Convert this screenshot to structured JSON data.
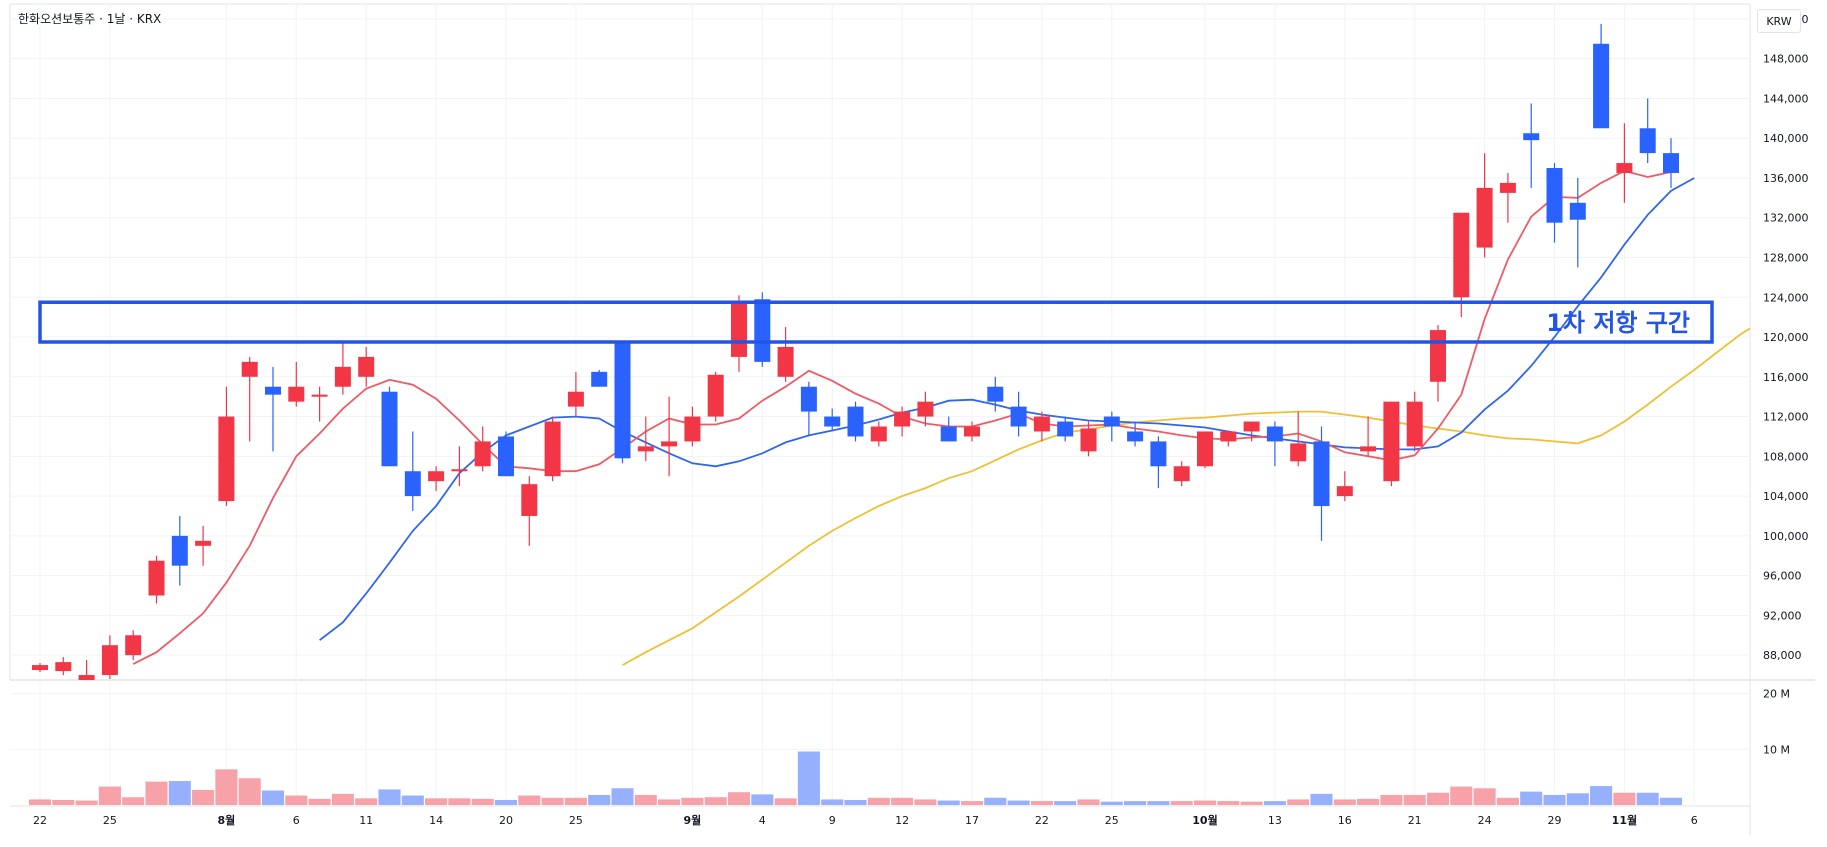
{
  "symbol_title": "한화오션보통주 · 1날 · KRX",
  "currency": "KRW",
  "annotation": {
    "label": "1차 저항 구간",
    "from": 119500,
    "to": 123500
  },
  "colors": {
    "up": "#f23645",
    "down": "#2962ff",
    "up_vol": "#f7a1a9",
    "down_vol": "#97b0fd",
    "ma5": "#ef5b64",
    "ma10": "#2f66f0",
    "ma20": "#f0c034",
    "box": "#2255e6"
  },
  "chart_data": {
    "type": "candlestick",
    "price_axis": {
      "min": 85500,
      "max": 153500,
      "ticks": [
        88000,
        92000,
        96000,
        100000,
        104000,
        108000,
        112000,
        116000,
        120000,
        124000,
        128000,
        132000,
        136000,
        140000,
        144000,
        148000,
        152000
      ],
      "tick_labels": [
        "88,000",
        "92,000",
        "96,000",
        "100,000",
        "104,000",
        "108,000",
        "112,000",
        "116,000",
        "120,000",
        "124,000",
        "128,000",
        "132,000",
        "136,000",
        "140,000",
        "144,000",
        "148,000",
        "152,000"
      ]
    },
    "volume_axis": {
      "max": 21000000,
      "tick_labels": [
        {
          "label": "20 M",
          "value": 20000000
        },
        {
          "label": "10 M",
          "value": 10000000
        }
      ]
    },
    "x_labels": [
      {
        "label": "22",
        "index": 0,
        "bold": false
      },
      {
        "label": "25",
        "index": 3,
        "bold": false
      },
      {
        "label": "8월",
        "index": 8,
        "bold": true
      },
      {
        "label": "6",
        "index": 11,
        "bold": false
      },
      {
        "label": "11",
        "index": 14,
        "bold": false
      },
      {
        "label": "14",
        "index": 17,
        "bold": false
      },
      {
        "label": "20",
        "index": 20,
        "bold": false
      },
      {
        "label": "25",
        "index": 23,
        "bold": false
      },
      {
        "label": "9월",
        "index": 28,
        "bold": true
      },
      {
        "label": "4",
        "index": 31,
        "bold": false
      },
      {
        "label": "9",
        "index": 34,
        "bold": false
      },
      {
        "label": "12",
        "index": 37,
        "bold": false
      },
      {
        "label": "17",
        "index": 40,
        "bold": false
      },
      {
        "label": "22",
        "index": 43,
        "bold": false
      },
      {
        "label": "25",
        "index": 46,
        "bold": false
      },
      {
        "label": "10월",
        "index": 50,
        "bold": true
      },
      {
        "label": "13",
        "index": 53,
        "bold": false
      },
      {
        "label": "16",
        "index": 56,
        "bold": false
      },
      {
        "label": "21",
        "index": 59,
        "bold": false
      },
      {
        "label": "24",
        "index": 62,
        "bold": false
      },
      {
        "label": "29",
        "index": 65,
        "bold": false
      },
      {
        "label": "11월",
        "index": 68,
        "bold": true
      },
      {
        "label": "6",
        "index": 71,
        "bold": false
      }
    ],
    "candles": [
      [
        86500,
        87200,
        86300,
        87000,
        1.0
      ],
      [
        86400,
        87800,
        86000,
        87300,
        0.9
      ],
      [
        85000,
        87500,
        84200,
        86000,
        0.8
      ],
      [
        86000,
        90000,
        85600,
        89000,
        3.3
      ],
      [
        88000,
        90500,
        87500,
        90000,
        1.4
      ],
      [
        94000,
        98000,
        93200,
        97500,
        4.2
      ],
      [
        100000,
        102000,
        95000,
        97000,
        4.3
      ],
      [
        99000,
        101000,
        97000,
        99500,
        2.7
      ],
      [
        103500,
        115000,
        103000,
        112000,
        6.4
      ],
      [
        116000,
        118000,
        109500,
        117500,
        4.8
      ],
      [
        115000,
        117000,
        108500,
        114200,
        2.6
      ],
      [
        113500,
        117500,
        113000,
        115000,
        1.7
      ],
      [
        114000,
        115000,
        111500,
        114200,
        1.1
      ],
      [
        115000,
        119500,
        114200,
        117000,
        2.0
      ],
      [
        116000,
        119000,
        115000,
        118000,
        1.2
      ],
      [
        114500,
        115000,
        107000,
        107000,
        2.8
      ],
      [
        106500,
        110500,
        102500,
        104000,
        1.7
      ],
      [
        105500,
        107000,
        104500,
        106500,
        1.2
      ],
      [
        106500,
        109000,
        105000,
        106700,
        1.2
      ],
      [
        107000,
        111000,
        106500,
        109500,
        1.1
      ],
      [
        110000,
        110500,
        106000,
        106000,
        0.9
      ],
      [
        102000,
        106000,
        99000,
        105200,
        1.7
      ],
      [
        106000,
        112000,
        105500,
        111500,
        1.3
      ],
      [
        113000,
        116500,
        112000,
        114500,
        1.3
      ],
      [
        116500,
        116700,
        115000,
        115000,
        1.8
      ],
      [
        119500,
        119500,
        107300,
        107800,
        3.0
      ],
      [
        108500,
        112000,
        107500,
        109000,
        1.8
      ],
      [
        109000,
        114000,
        106000,
        109500,
        1.0
      ],
      [
        109500,
        113000,
        109000,
        112000,
        1.3
      ],
      [
        112000,
        116500,
        111500,
        116200,
        1.4
      ],
      [
        118000,
        124200,
        116500,
        123500,
        2.3
      ],
      [
        123800,
        124500,
        117000,
        117500,
        1.9
      ],
      [
        116000,
        121000,
        115500,
        119000,
        1.2
      ],
      [
        115000,
        115500,
        110000,
        112500,
        9.6
      ],
      [
        112000,
        112800,
        110500,
        111000,
        1.0
      ],
      [
        113000,
        113500,
        109500,
        110000,
        0.9
      ],
      [
        109500,
        111500,
        109000,
        111000,
        1.3
      ],
      [
        111000,
        113000,
        110000,
        112500,
        1.3
      ],
      [
        112000,
        114500,
        111000,
        113500,
        1.0
      ],
      [
        111000,
        112000,
        109500,
        109500,
        0.8
      ],
      [
        110000,
        111500,
        109500,
        111000,
        0.7
      ],
      [
        115000,
        116000,
        112500,
        113500,
        1.3
      ],
      [
        113000,
        114500,
        110000,
        111000,
        0.8
      ],
      [
        110500,
        112500,
        109500,
        112000,
        0.7
      ],
      [
        111500,
        112000,
        109500,
        110000,
        0.7
      ],
      [
        108500,
        111500,
        108000,
        110800,
        1.0
      ],
      [
        112000,
        112500,
        109500,
        111000,
        0.6
      ],
      [
        110500,
        111500,
        109000,
        109500,
        0.7
      ],
      [
        109500,
        110000,
        104800,
        107000,
        0.7
      ],
      [
        105500,
        107500,
        105000,
        107000,
        0.7
      ],
      [
        107000,
        110500,
        106800,
        110500,
        0.8
      ],
      [
        109500,
        110500,
        109000,
        110500,
        0.7
      ],
      [
        110500,
        111500,
        109500,
        111500,
        0.6
      ],
      [
        111000,
        111500,
        107000,
        109500,
        0.7
      ],
      [
        107500,
        112500,
        107000,
        109300,
        1.0
      ],
      [
        109500,
        111000,
        99500,
        103000,
        2.0
      ],
      [
        104000,
        106500,
        103500,
        105000,
        1.0
      ],
      [
        108500,
        112000,
        108000,
        109000,
        1.1
      ],
      [
        105500,
        113500,
        105000,
        113500,
        1.8
      ],
      [
        109000,
        114500,
        108500,
        113500,
        1.8
      ],
      [
        115500,
        121200,
        113500,
        120700,
        2.2
      ],
      [
        124000,
        132500,
        122000,
        132500,
        3.3
      ],
      [
        129000,
        138500,
        128000,
        135000,
        3.0
      ],
      [
        134500,
        136500,
        131500,
        135500,
        1.3
      ],
      [
        140500,
        143500,
        135000,
        139800,
        2.4
      ],
      [
        137000,
        137500,
        129500,
        131500,
        1.8
      ],
      [
        133500,
        136000,
        127000,
        131800,
        2.1
      ],
      [
        149500,
        151500,
        141500,
        141000,
        3.4
      ],
      [
        136500,
        141500,
        133500,
        137500,
        2.2
      ],
      [
        141000,
        144000,
        137500,
        138500,
        2.2
      ],
      [
        138500,
        140000,
        135000,
        136500,
        1.3
      ]
    ],
    "ma5": [
      null,
      null,
      null,
      null,
      87100,
      88300,
      90200,
      92200,
      95300,
      99000,
      103800,
      108000,
      110300,
      112800,
      114800,
      115700,
      115200,
      113800,
      111600,
      109200,
      107000,
      106800,
      106500,
      106500,
      107200,
      108800,
      110500,
      111800,
      111200,
      111200,
      111800,
      113600,
      115000,
      116600,
      115600,
      114300,
      113300,
      112000,
      111300,
      111000,
      111000,
      111600,
      112300,
      111300,
      111000,
      111100,
      111200,
      110800,
      110500,
      110100,
      109800,
      109700,
      109900,
      110000,
      110300,
      109500,
      108400,
      108000,
      107600,
      108100,
      110800,
      114200,
      121800,
      127800,
      132100,
      134100,
      134000,
      135500,
      136700,
      136100,
      136600
    ],
    "ma10": [
      null,
      null,
      null,
      null,
      null,
      null,
      null,
      null,
      null,
      null,
      null,
      null,
      89500,
      91300,
      94200,
      97300,
      100500,
      103000,
      106300,
      108400,
      110100,
      111000,
      111900,
      112000,
      111800,
      110500,
      109400,
      108300,
      107300,
      107000,
      107500,
      108300,
      109400,
      110100,
      110600,
      111100,
      111700,
      112400,
      112900,
      113600,
      113700,
      113200,
      112600,
      112200,
      111900,
      111600,
      111500,
      111400,
      111300,
      111100,
      110900,
      110500,
      110100,
      109800,
      109500,
      109200,
      108900,
      108800,
      108700,
      108700,
      109000,
      110400,
      112700,
      114600,
      117100,
      120000,
      123100,
      126000,
      129300,
      132300,
      134700,
      136000
    ],
    "ma20": [
      null,
      null,
      null,
      null,
      null,
      null,
      null,
      null,
      null,
      null,
      null,
      null,
      null,
      null,
      null,
      null,
      null,
      null,
      null,
      null,
      null,
      null,
      null,
      null,
      null,
      87000,
      88300,
      89500,
      90700,
      92300,
      93900,
      95600,
      97300,
      99000,
      100500,
      101800,
      103000,
      104000,
      104800,
      105800,
      106500,
      107600,
      108700,
      109600,
      110400,
      110700,
      111100,
      111400,
      111600,
      111800,
      111900,
      112100,
      112300,
      112400,
      112500,
      112500,
      112200,
      111900,
      111500,
      111100,
      110800,
      110500,
      110100,
      109800,
      109700,
      109500,
      109300,
      110100,
      111500,
      113200,
      115000,
      116700,
      118500,
      120300,
      121700,
      122500
    ]
  }
}
